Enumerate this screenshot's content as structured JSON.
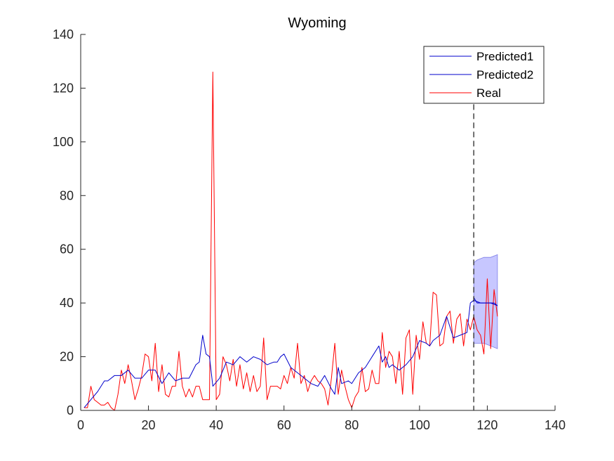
{
  "chart_data": {
    "type": "line",
    "title": "Wyoming",
    "xlabel": "",
    "ylabel": "",
    "xlim": [
      0,
      140
    ],
    "ylim": [
      0,
      140
    ],
    "xticks": [
      0,
      20,
      40,
      60,
      80,
      100,
      120,
      140
    ],
    "yticks": [
      0,
      20,
      40,
      60,
      80,
      100,
      120,
      140
    ],
    "grid": false,
    "legend_position": "top-right",
    "forecast_start_x": 116,
    "series": [
      {
        "name": "Predicted1",
        "color": "#0000cc",
        "x": [
          1,
          3,
          5,
          7,
          8,
          10,
          12,
          14,
          16,
          18,
          20,
          22,
          24,
          26,
          28,
          30,
          32,
          34,
          35,
          36,
          37,
          38,
          39,
          41,
          43,
          45,
          47,
          49,
          51,
          53,
          55,
          57,
          58,
          59,
          60,
          62,
          64,
          66,
          68,
          70,
          72,
          74,
          75,
          76,
          77,
          79,
          80,
          82,
          84,
          86,
          88,
          89,
          90,
          91,
          92,
          94,
          96,
          98,
          100,
          102,
          103,
          104,
          106,
          108,
          110,
          112,
          114,
          115,
          116,
          118,
          120,
          122,
          123
        ],
        "y": [
          1,
          4,
          7,
          11,
          11,
          13,
          13,
          15,
          12,
          12,
          15,
          15,
          10,
          14,
          11,
          12,
          12,
          17,
          18,
          28,
          21,
          20,
          9,
          12,
          18,
          17,
          20,
          18,
          20,
          19,
          17,
          18,
          18,
          20,
          21,
          16,
          14,
          12,
          10,
          9,
          13,
          8,
          6,
          16,
          10,
          11,
          10,
          14,
          16,
          20,
          24,
          18,
          20,
          16,
          17,
          15,
          17,
          20,
          26,
          25,
          24,
          26,
          28,
          35,
          27,
          28,
          29,
          40,
          41,
          40,
          40,
          40,
          39
        ]
      },
      {
        "name": "Predicted2",
        "color": "#0000cc",
        "x": [
          116,
          117,
          119,
          121,
          123
        ],
        "y": [
          42,
          40,
          40,
          40,
          39
        ]
      },
      {
        "name": "Real",
        "color": "#ff0000",
        "x": [
          1,
          2,
          3,
          4,
          5,
          6,
          7,
          8,
          9,
          10,
          11,
          12,
          13,
          14,
          15,
          16,
          17,
          18,
          19,
          20,
          21,
          22,
          23,
          24,
          25,
          26,
          27,
          28,
          29,
          30,
          31,
          32,
          33,
          34,
          35,
          36,
          37,
          38,
          39,
          40,
          41,
          42,
          43,
          44,
          45,
          46,
          47,
          48,
          49,
          50,
          51,
          52,
          53,
          54,
          55,
          56,
          57,
          58,
          59,
          60,
          61,
          62,
          63,
          64,
          65,
          66,
          67,
          68,
          69,
          70,
          71,
          72,
          73,
          74,
          75,
          76,
          77,
          78,
          79,
          80,
          81,
          82,
          83,
          84,
          85,
          86,
          87,
          88,
          89,
          90,
          91,
          92,
          93,
          94,
          95,
          96,
          97,
          98,
          99,
          100,
          101,
          102,
          103,
          104,
          105,
          106,
          107,
          108,
          109,
          110,
          111,
          112,
          113,
          114,
          115,
          116,
          117,
          118,
          119,
          120,
          121,
          122,
          123
        ],
        "y": [
          1,
          1,
          9,
          4,
          3,
          2,
          2,
          3,
          1,
          0,
          6,
          15,
          10,
          17,
          11,
          4,
          8,
          13,
          21,
          20,
          11,
          25,
          7,
          17,
          6,
          5,
          9,
          9,
          22,
          9,
          5,
          8,
          5,
          9,
          9,
          4,
          4,
          4,
          126,
          4,
          6,
          20,
          17,
          11,
          19,
          9,
          17,
          8,
          14,
          7,
          13,
          7,
          9,
          27,
          4,
          9,
          9,
          9,
          8,
          13,
          10,
          16,
          12,
          25,
          10,
          13,
          7,
          11,
          13,
          11,
          10,
          8,
          2,
          12,
          25,
          6,
          15,
          9,
          4,
          1,
          5,
          7,
          16,
          7,
          8,
          15,
          10,
          10,
          29,
          16,
          22,
          20,
          10,
          22,
          6,
          27,
          30,
          6,
          28,
          19,
          33,
          25,
          24,
          44,
          43,
          24,
          25,
          35,
          37,
          25,
          34,
          36,
          24,
          34,
          30,
          35,
          30,
          28,
          21,
          49,
          23,
          45,
          35
        ]
      }
    ],
    "confidence_band": {
      "name": "",
      "color": "#9999ff",
      "x": [
        116,
        117,
        119,
        121,
        123
      ],
      "upper": [
        55,
        56,
        57,
        57,
        58
      ],
      "lower": [
        25,
        25,
        25,
        24,
        23
      ]
    }
  }
}
